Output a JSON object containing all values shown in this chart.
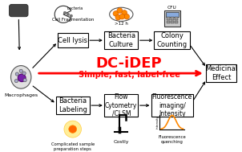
{
  "title_main": "DC-iDEP",
  "title_sub": "Simple, fast, label-free",
  "title_color": "#ff0000",
  "bg_color": "#ffffff",
  "label_macrophages": "Macrophages",
  "label_cell_frag": "Cell Fragmentation",
  "label_cfu": "CFU",
  "label_bacteria": "bacteria",
  "label_12h": ">12 h",
  "label_complicated": "Complicated sample\npreparation steps",
  "label_costly": "Costly",
  "label_fluor_quench": "Fluorescence\nquenching",
  "label_intensity": "intensity",
  "arrow_red_color": "#ff0000",
  "arrow_black_color": "#000000"
}
